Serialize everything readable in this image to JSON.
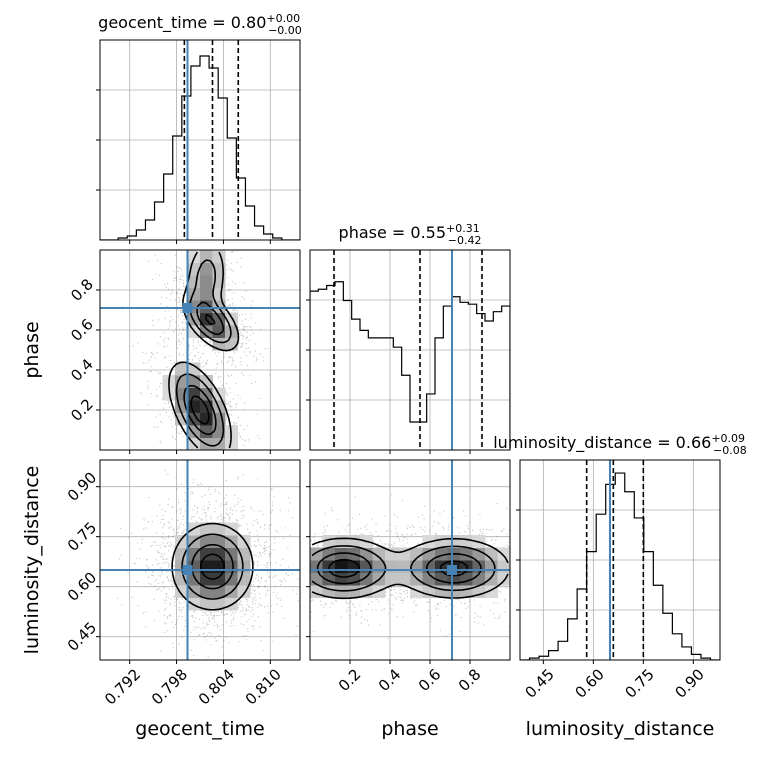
{
  "chart_data": {
    "type": "corner",
    "parameters": [
      {
        "name": "geocent_time",
        "title": {
          "label": "geocent_time",
          "median": "0.80",
          "plus": "+0.00",
          "minus": "−0.00"
        },
        "range": [
          0.7882,
          0.8138
        ],
        "ticks": [
          {
            "value": 0.792,
            "label": "0.792"
          },
          {
            "value": 0.798,
            "label": "0.798"
          },
          {
            "value": 0.804,
            "label": "0.804"
          },
          {
            "value": 0.81,
            "label": "0.810"
          }
        ],
        "truth": 0.7994,
        "quantiles": [
          0.799,
          0.8026,
          0.8059
        ],
        "hist": [
          0,
          0,
          0.01,
          0.02,
          0.05,
          0.1,
          0.19,
          0.33,
          0.52,
          0.72,
          0.87,
          0.92,
          0.86,
          0.71,
          0.51,
          0.31,
          0.17,
          0.07,
          0.03,
          0.01,
          0,
          0
        ],
        "hist_edges": [
          0.7882,
          0.8138
        ],
        "hist_ymax": 1.0
      },
      {
        "name": "phase",
        "title": {
          "label": "phase",
          "median": "0.55",
          "plus": "+0.31",
          "minus": "−0.42"
        },
        "range": [
          0.0,
          1.0
        ],
        "ticks": [
          {
            "value": 0.2,
            "label": "0.2"
          },
          {
            "value": 0.4,
            "label": "0.4"
          },
          {
            "value": 0.6,
            "label": "0.6"
          },
          {
            "value": 0.8,
            "label": "0.8"
          }
        ],
        "truth": 0.71,
        "quantiles": [
          0.12,
          0.55,
          0.86
        ],
        "hist": [
          0.85,
          0.86,
          0.88,
          0.9,
          0.8,
          0.7,
          0.64,
          0.6,
          0.6,
          0.6,
          0.55,
          0.4,
          0.15,
          0.15,
          0.3,
          0.6,
          0.77,
          0.82,
          0.79,
          0.78,
          0.73,
          0.69,
          0.74,
          0.77
        ],
        "hist_edges": [
          0.0,
          1.0
        ],
        "hist_ymax": 1.07
      },
      {
        "name": "luminosity_distance",
        "title": {
          "label": "luminosity_distance",
          "median": "0.66",
          "plus": "+0.09",
          "minus": "−0.08"
        },
        "range": [
          0.38,
          0.98
        ],
        "ticks": [
          {
            "value": 0.45,
            "label": "0.45"
          },
          {
            "value": 0.6,
            "label": "0.60"
          },
          {
            "value": 0.75,
            "label": "0.75"
          },
          {
            "value": 0.9,
            "label": "0.90"
          }
        ],
        "truth": 0.65,
        "quantiles": [
          0.58,
          0.66,
          0.75
        ],
        "hist": [
          0,
          0.01,
          0.02,
          0.05,
          0.1,
          0.22,
          0.38,
          0.58,
          0.78,
          0.94,
          1.0,
          0.9,
          0.76,
          0.58,
          0.4,
          0.25,
          0.14,
          0.07,
          0.03,
          0.01,
          0
        ],
        "hist_edges": [
          0.38,
          0.98
        ],
        "hist_ymax": 1.07
      }
    ],
    "truth_color": "#4682b4",
    "grid": true,
    "pairs": [
      {
        "x": 0,
        "y": 1,
        "blobs": [
          {
            "cx": 0.8025,
            "cy": 0.64,
            "sx": 0.0018,
            "sy": 0.075,
            "rho": -0.55,
            "w": 1.0
          },
          {
            "cx": 0.8018,
            "cy": 0.86,
            "sx": 0.0014,
            "sy": 0.11,
            "rho": 0.15,
            "w": 0.55
          },
          {
            "cx": 0.801,
            "cy": 0.2,
            "sx": 0.002,
            "sy": 0.12,
            "rho": -0.55,
            "w": 1.2
          }
        ]
      },
      {
        "x": 0,
        "y": 2,
        "blobs": [
          {
            "cx": 0.8026,
            "cy": 0.66,
            "sx": 0.0026,
            "sy": 0.065,
            "rho": 0.0,
            "w": 1.0
          }
        ]
      },
      {
        "x": 1,
        "y": 2,
        "blobs": [
          {
            "cx": 0.17,
            "cy": 0.655,
            "sx": 0.13,
            "sy": 0.045,
            "rho": 0.0,
            "w": 1.0
          },
          {
            "cx": 0.72,
            "cy": 0.655,
            "sx": 0.14,
            "sy": 0.045,
            "rho": 0.0,
            "w": 0.95
          }
        ]
      }
    ]
  }
}
